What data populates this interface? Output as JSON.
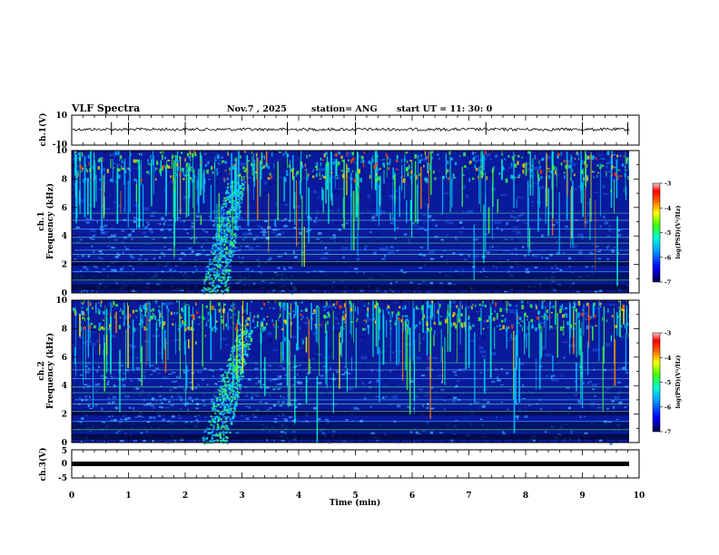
{
  "header": {
    "title": "VLF Spectra",
    "date": "Nov.7 , 2025",
    "station": "station= ANG",
    "start": "start UT = 11: 30: 0"
  },
  "chart_data": [
    {
      "id": "ch1_waveform",
      "type": "line",
      "ylabel": "ch.1(V)",
      "ylim": [
        -10,
        10
      ],
      "yticks": [
        "10",
        "-10"
      ],
      "xlim": [
        0,
        9.83
      ],
      "mean_level": 0.5,
      "spikes_min": [
        0.7,
        1.0,
        2.0,
        3.8,
        5.0,
        7.3,
        9.0,
        9.8
      ]
    },
    {
      "id": "ch1_spectrogram",
      "type": "heatmap",
      "ylabel": "ch.1\nFrequency (kHz)",
      "ylim": [
        0,
        10
      ],
      "yticks": [
        "0",
        "2",
        "4",
        "6",
        "8",
        "10"
      ],
      "xlim": [
        0,
        9.83
      ],
      "colorbar": {
        "label": "log(PSD)(V²/Hz)",
        "range": [
          -7,
          -3
        ],
        "ticks": [
          "-3",
          "-4",
          "-5",
          "-6",
          "-7"
        ]
      },
      "hiss_band_khz": [
        0,
        5.5
      ],
      "chorus_time_min": [
        2.5,
        3.0
      ]
    },
    {
      "id": "ch2_spectrogram",
      "type": "heatmap",
      "ylabel": "ch.2\nFrequency (kHz)",
      "ylim": [
        0,
        10
      ],
      "yticks": [
        "0",
        "2",
        "4",
        "6",
        "8",
        "10"
      ],
      "xlim": [
        0,
        9.83
      ],
      "colorbar": {
        "label": "log(PSD)(V²/Hz)",
        "range": [
          -7,
          -3
        ],
        "ticks": [
          "-3",
          "-4",
          "-5",
          "-6",
          "-7"
        ]
      },
      "hiss_band_khz": [
        0,
        5.5
      ],
      "chorus_time_min": [
        2.5,
        3.2
      ]
    },
    {
      "id": "ch3_waveform",
      "type": "line",
      "ylabel": "ch.3(V)",
      "ylim": [
        -5,
        5
      ],
      "yticks": [
        "5",
        "0",
        "-5"
      ],
      "xlim": [
        0,
        9.83
      ],
      "mean_level": 0
    }
  ],
  "xaxis": {
    "label": "Time (min)",
    "ticks": [
      "0",
      "1",
      "2",
      "3",
      "4",
      "5",
      "6",
      "7",
      "8",
      "9",
      "10"
    ],
    "range": [
      0,
      10
    ]
  },
  "colors": {
    "spectrogram_background": "#0a1a9c",
    "lowband": "#000a30"
  }
}
